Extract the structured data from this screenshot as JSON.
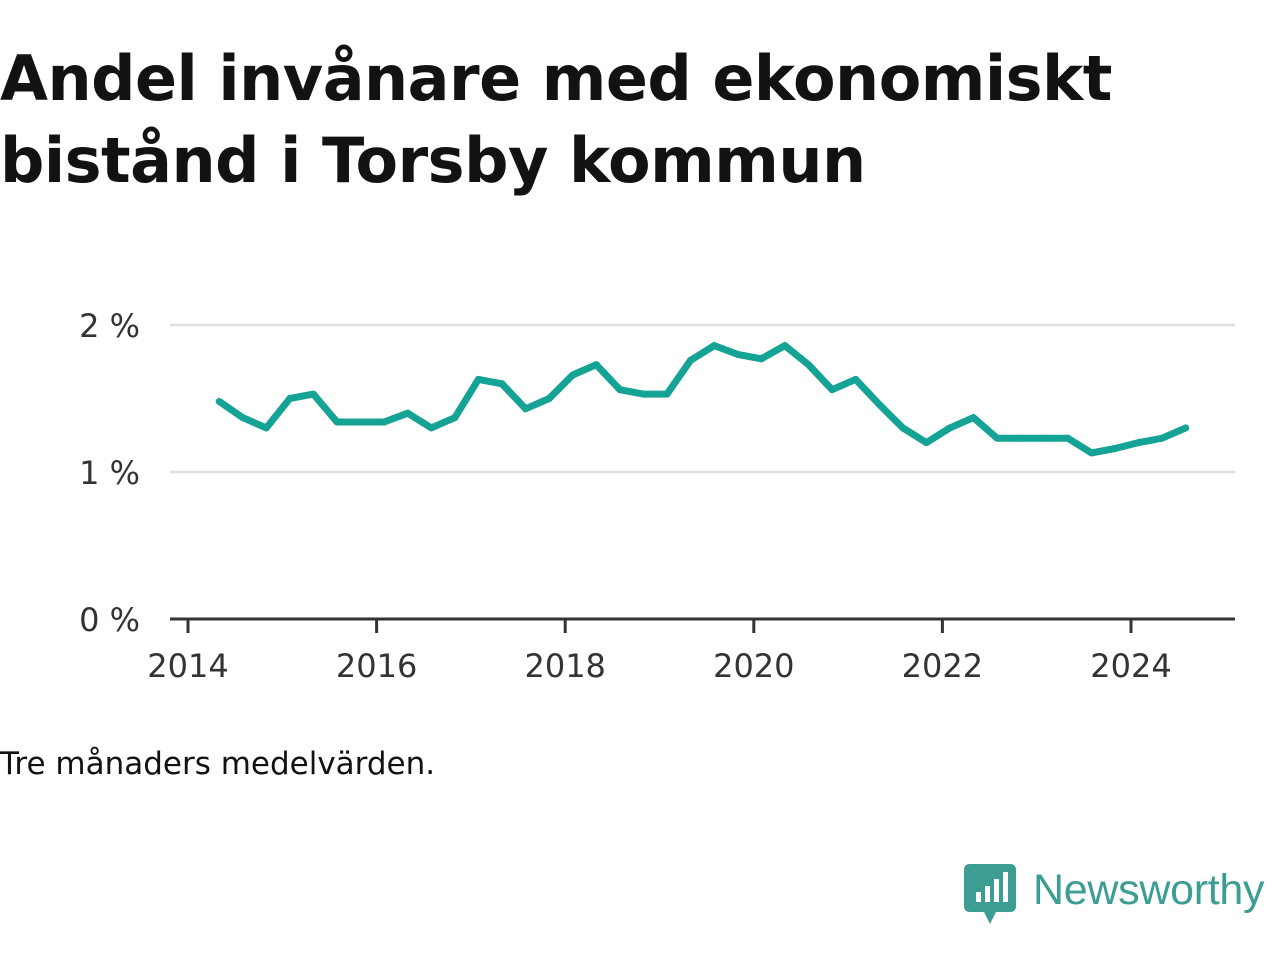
{
  "chart_data": {
    "type": "line",
    "title": "Andel invånare med ekonomiskt bistånd i Torsby kommun",
    "note": "Tre månaders medelvärden.",
    "ylabel": "",
    "xlabel": "",
    "ylim": [
      0,
      2
    ],
    "xlim": [
      2014,
      2025.2
    ],
    "grid": true,
    "line_color": "#15a396",
    "y_ticks": [
      {
        "value": 0,
        "label": "0 %"
      },
      {
        "value": 1,
        "label": "1 %"
      },
      {
        "value": 2,
        "label": "2 %"
      }
    ],
    "x_ticks": [
      {
        "value": 2014,
        "label": "2014"
      },
      {
        "value": 2016,
        "label": "2016"
      },
      {
        "value": 2018,
        "label": "2018"
      },
      {
        "value": 2020,
        "label": "2020"
      },
      {
        "value": 2022,
        "label": "2022"
      },
      {
        "value": 2024,
        "label": "2024"
      }
    ],
    "x": [
      2014.33,
      2014.58,
      2014.83,
      2015.08,
      2015.33,
      2015.58,
      2015.83,
      2016.08,
      2016.33,
      2016.58,
      2016.83,
      2017.08,
      2017.33,
      2017.58,
      2017.83,
      2018.08,
      2018.33,
      2018.58,
      2018.83,
      2019.08,
      2019.33,
      2019.58,
      2019.83,
      2020.08,
      2020.33,
      2020.58,
      2020.83,
      2021.08,
      2021.33,
      2021.58,
      2021.83,
      2022.08,
      2022.33,
      2022.58,
      2022.83,
      2023.08,
      2023.33,
      2023.58,
      2023.83,
      2024.08,
      2024.33,
      2024.58
    ],
    "y": [
      1.48,
      1.37,
      1.3,
      1.5,
      1.53,
      1.34,
      1.34,
      1.34,
      1.4,
      1.3,
      1.37,
      1.63,
      1.6,
      1.43,
      1.5,
      1.66,
      1.73,
      1.56,
      1.53,
      1.53,
      1.76,
      1.86,
      1.8,
      1.77,
      1.86,
      1.73,
      1.56,
      1.63,
      1.46,
      1.3,
      1.2,
      1.3,
      1.37,
      1.23,
      1.23,
      1.23,
      1.23,
      1.13,
      1.16,
      1.2,
      1.23,
      1.3
    ]
  },
  "brand": {
    "name": "Newsworthy",
    "color": "#3c9e93",
    "icon": "bar-chart-speech-bubble-icon"
  }
}
